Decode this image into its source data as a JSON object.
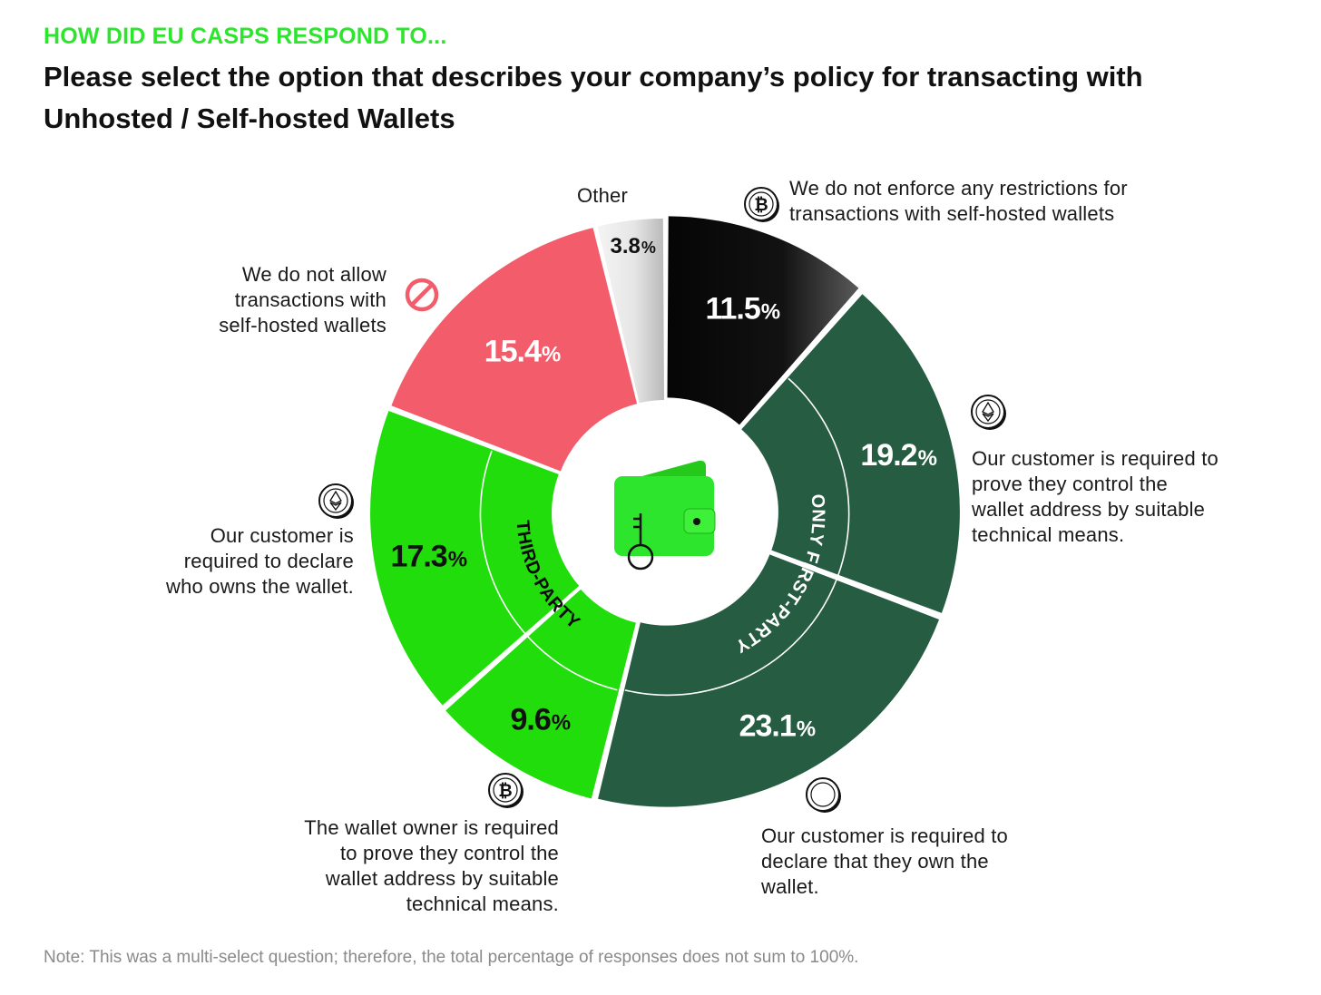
{
  "header": {
    "eyebrow": "HOW DID EU CASPS RESPOND TO...",
    "title": "Please select the option that describes your company’s policy for transacting with Unhosted / Self-hosted Wallets"
  },
  "colors": {
    "accent_green": "#2ee52e",
    "bright_green": "#22dd0c",
    "dark_green": "#265c42",
    "pink": "#f25c6b",
    "black": "#0d0d0d",
    "gray": "#e6e6e6"
  },
  "chart_data": {
    "type": "pie",
    "variant": "donut-with-group-bands",
    "title": "Please select the option that describes your company’s policy for transacting with Unhosted / Self-hosted Wallets",
    "unit": "%",
    "slices": [
      {
        "key": "no_restrictions",
        "label": "We do not enforce any restrictions for transactions with self-hosted wallets",
        "value": 11.5,
        "value_label": "11.5",
        "color": "black",
        "group": null,
        "icon": "bitcoin-coin-icon"
      },
      {
        "key": "first_party_prove",
        "label": "Our customer is required to prove they control the wallet address by suitable technical means.",
        "value": 19.2,
        "value_label": "19.2",
        "color": "dark_green",
        "group": "first_party",
        "icon": "ethereum-coin-icon"
      },
      {
        "key": "first_party_declare",
        "label": "Our customer is required to declare that they own the wallet.",
        "value": 23.1,
        "value_label": "23.1",
        "color": "dark_green",
        "group": "first_party",
        "icon": "compass-coin-icon"
      },
      {
        "key": "third_party_prove",
        "label": "The wallet owner is required to prove they control the wallet address by suitable technical means.",
        "value": 9.6,
        "value_label": "9.6",
        "color": "bright_green",
        "group": "third_party",
        "icon": "bitcoin-coin-icon"
      },
      {
        "key": "third_party_declare",
        "label": "Our customer is required to declare who owns the wallet.",
        "value": 17.3,
        "value_label": "17.3",
        "color": "bright_green",
        "group": "third_party",
        "icon": "ethereum-coin-icon"
      },
      {
        "key": "not_allowed",
        "label": "We do not allow transactions with self-hosted wallets",
        "value": 15.4,
        "value_label": "15.4",
        "color": "pink",
        "group": null,
        "icon": "prohibited-icon"
      },
      {
        "key": "other",
        "label": "Other",
        "value": 3.8,
        "value_label": "3.8",
        "color": "gray",
        "group": null,
        "icon": null
      }
    ],
    "groups": [
      {
        "key": "first_party",
        "label": "ONLY FIRST-PARTY"
      },
      {
        "key": "third_party",
        "label": "THIRD-PARTY"
      }
    ],
    "center_icon": "wallet-key-icon"
  },
  "labels": {
    "no_restrictions": [
      "We do not enforce any restrictions for",
      "transactions with self-hosted wallets"
    ],
    "first_party_prove": [
      "Our customer is required to",
      "prove they control the",
      "wallet address by suitable",
      "technical means."
    ],
    "first_party_declare": [
      "Our customer is required to",
      "declare that they own the",
      "wallet."
    ],
    "third_party_prove": [
      "The wallet owner is required",
      "to prove they control the",
      "wallet address by suitable",
      "technical means."
    ],
    "third_party_declare": [
      "Our customer is",
      "required to declare",
      "who owns the wallet."
    ],
    "not_allowed": [
      "We do not allow",
      "transactions with",
      "self-hosted wallets"
    ],
    "other": [
      "Other"
    ]
  },
  "note": "Note: This was a multi-select question; therefore, the total percentage of responses does not sum to 100%."
}
